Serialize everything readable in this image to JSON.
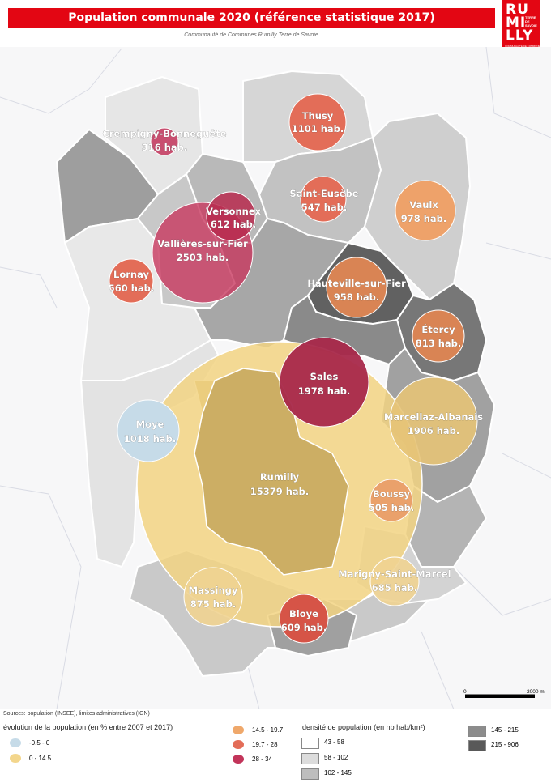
{
  "title": "Population communale 2020 (référence statistique 2017)",
  "subtitle": "Communauté de Communes Rumilly Terre de Savoie",
  "logo": {
    "line1": "RU",
    "mid": "TERRE DE SAVOIE",
    "line2": "LLY",
    "middle_big": "MI",
    "tagline": "COMMUNAUTÉ DE COMMUNES"
  },
  "communes": [
    {
      "name": "Thusy",
      "pop": "1101 hab.",
      "fill": "#e36d58"
    },
    {
      "name": "Crempigny-Bonneguête",
      "pop": "316 hab.",
      "fill": "#c2345a"
    },
    {
      "name": "Saint-Eusèbe",
      "pop": "547 hab.",
      "fill": "#e36d58"
    },
    {
      "name": "Vaulx",
      "pop": "978 hab.",
      "fill": "#eea26a"
    },
    {
      "name": "Versonnex",
      "pop": "612 hab.",
      "fill": "#b72a4e"
    },
    {
      "name": "Vallières-sur-Fier",
      "pop": "2503 hab.",
      "fill": "#c8385f"
    },
    {
      "name": "Lornay",
      "pop": "560 hab.",
      "fill": "#e36d58"
    },
    {
      "name": "Hauteville-sur-Fier",
      "pop": "958 hab.",
      "fill": "#d98454"
    },
    {
      "name": "Étercy",
      "pop": "813 hab.",
      "fill": "#d98454"
    },
    {
      "name": "Sales",
      "pop": "1978 hab.",
      "fill": "#a8284a"
    },
    {
      "name": "Moye",
      "pop": "1018 hab.",
      "fill": "#c6dbe8"
    },
    {
      "name": "Marcellaz-Albanais",
      "pop": "1906 hab.",
      "fill": "#e6c377"
    },
    {
      "name": "Rumilly",
      "pop": "15379 hab.",
      "fill": "#f2d383"
    },
    {
      "name": "Boussy",
      "pop": "505 hab.",
      "fill": "#e99a66"
    },
    {
      "name": "Marigny-Saint-Marcel",
      "pop": "685 hab.",
      "fill": "#efd391"
    },
    {
      "name": "Massingy",
      "pop": "875 hab.",
      "fill": "#efd391"
    },
    {
      "name": "Bloye",
      "pop": "609 hab.",
      "fill": "#d65447"
    }
  ],
  "scale": {
    "start": "0",
    "end": "2000 m"
  },
  "sources": "Sources: population (INSEE), limites administratives (IGN)",
  "legend_evolution": {
    "title": "évolution de la population (en % entre 2007 et 2017)",
    "items": [
      {
        "label": "-0.5 - 0",
        "color": "#c6dbe8"
      },
      {
        "label": "0 - 14.5",
        "color": "#f3d68c"
      },
      {
        "label": "14.5 - 19.7",
        "color": "#efa86b"
      },
      {
        "label": "19.7 - 28",
        "color": "#e36d58"
      },
      {
        "label": "28 - 34",
        "color": "#c2345a"
      }
    ]
  },
  "legend_density": {
    "title": "densité de population (en nb hab/km²)",
    "items": [
      {
        "label": "43 - 58",
        "color": "#ffffff"
      },
      {
        "label": "58 - 102",
        "color": "#dcdcdc"
      },
      {
        "label": "102 - 145",
        "color": "#bdbdbd"
      },
      {
        "label": "145 - 215",
        "color": "#8c8c8c"
      },
      {
        "label": "215 - 906",
        "color": "#595959"
      }
    ]
  }
}
